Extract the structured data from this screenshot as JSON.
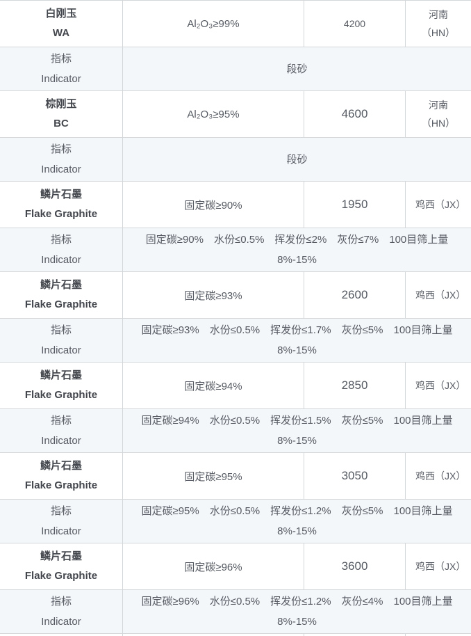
{
  "colors": {
    "border": "#d4d7da",
    "indicator_row_bg": "#f4f7fa",
    "text": "#555a62",
    "text_strong": "#43474d",
    "row_bg": "#ffffff"
  },
  "table": {
    "rows": [
      {
        "type": "material",
        "name_cn": "白刚玉",
        "name_en": "WA",
        "spec": "Al₂O₃≥99%",
        "price": "4200",
        "price_small": true,
        "origin": "河南（HN）"
      },
      {
        "type": "indicator",
        "label_cn": "指标",
        "label_en": "Indicator",
        "detail": "段砂"
      },
      {
        "type": "material",
        "name_cn": "棕刚玉",
        "name_en": "BC",
        "spec": "Al₂O₃≥95%",
        "price": "4600",
        "origin": "河南（HN）"
      },
      {
        "type": "indicator",
        "label_cn": "指标",
        "label_en": "Indicator",
        "detail": "段砂"
      },
      {
        "type": "material",
        "name_cn": "鳞片石墨",
        "name_en": "Flake Graphite",
        "spec": "固定碳≥90%",
        "price": "1950",
        "origin": "鸡西（JX）"
      },
      {
        "type": "indicator",
        "label_cn": "指标",
        "label_en": "Indicator",
        "detail": "固定碳≥90%　水份≤0.5%　挥发份≤2%　灰份≤7%　100目筛上量8%-15%"
      },
      {
        "type": "material",
        "name_cn": "鳞片石墨",
        "name_en": "Flake Graphite",
        "spec": "固定碳≥93%",
        "price": "2600",
        "origin": "鸡西（JX）"
      },
      {
        "type": "indicator",
        "label_cn": "指标",
        "label_en": "Indicator",
        "detail": "固定碳≥93%　水份≤0.5%　挥发份≤1.7%　灰份≤5%　100目筛上量8%-15%"
      },
      {
        "type": "material",
        "name_cn": "鳞片石墨",
        "name_en": "Flake Graphite",
        "spec": "固定碳≥94%",
        "price": "2850",
        "origin": "鸡西（JX）"
      },
      {
        "type": "indicator",
        "label_cn": "指标",
        "label_en": "Indicator",
        "detail": "固定碳≥94%　水份≤0.5%　挥发份≤1.5%　灰份≤5%　100目筛上量8%-15%"
      },
      {
        "type": "material",
        "name_cn": "鳞片石墨",
        "name_en": "Flake Graphite",
        "spec": "固定碳≥95%",
        "price": "3050",
        "origin": "鸡西（JX）"
      },
      {
        "type": "indicator",
        "label_cn": "指标",
        "label_en": "Indicator",
        "detail": "固定碳≥95%　水份≤0.5%　挥发份≤1.2%　灰份≤5%　100目筛上量8%-15%"
      },
      {
        "type": "material",
        "name_cn": "鳞片石墨",
        "name_en": "Flake Graphite",
        "spec": "固定碳≥96%",
        "price": "3600",
        "origin": "鸡西（JX）"
      },
      {
        "type": "indicator",
        "label_cn": "指标",
        "label_en": "Indicator",
        "detail": "固定碳≥96%　水份≤0.5%　挥发份≤1.2%　灰份≤4%　100目筛上量8%-15%"
      },
      {
        "type": "partial"
      }
    ]
  }
}
